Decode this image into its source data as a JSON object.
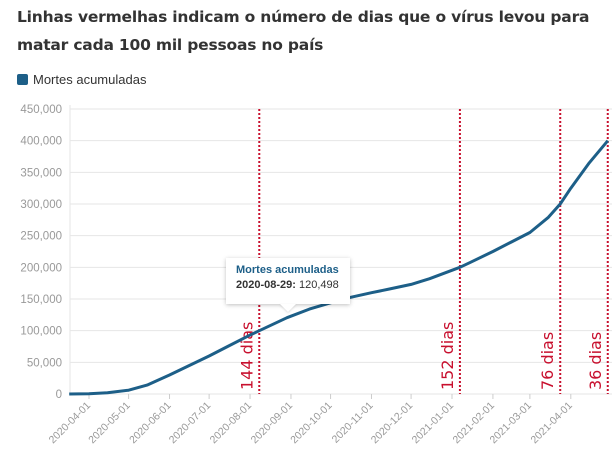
{
  "chart_data": {
    "type": "line",
    "title": "Linhas vermelhas indicam o número de dias que o vírus levou para matar cada 100 mil pessoas no país",
    "xlabel": "",
    "ylabel": "",
    "ylim": [
      0,
      450000
    ],
    "y_ticks": [
      0,
      50000,
      100000,
      150000,
      200000,
      250000,
      300000,
      350000,
      400000,
      450000
    ],
    "y_tick_labels": [
      "0",
      "50,000",
      "100,000",
      "150,000",
      "200,000",
      "250,000",
      "300,000",
      "350,000",
      "400,000",
      "450,000"
    ],
    "x_tick_labels": [
      "2020-04-01",
      "2020-05-01",
      "2020-06-01",
      "2020-07-01",
      "2020-08-01",
      "2020-09-01",
      "2020-10-01",
      "2020-11-01",
      "2020-12-01",
      "2021-01-01",
      "2021-02-01",
      "2021-03-01",
      "2021-04-01"
    ],
    "grid": true,
    "legend_placement": "top-left",
    "series": [
      {
        "name": "Mortes acumuladas",
        "color": "#1d5f88",
        "points": [
          [
            "2020-03-17",
            1
          ],
          [
            "2020-04-01",
            240
          ],
          [
            "2020-04-15",
            1900
          ],
          [
            "2020-05-01",
            6000
          ],
          [
            "2020-05-15",
            14000
          ],
          [
            "2020-06-01",
            30000
          ],
          [
            "2020-06-15",
            44000
          ],
          [
            "2020-07-01",
            60000
          ],
          [
            "2020-07-15",
            75000
          ],
          [
            "2020-08-01",
            93000
          ],
          [
            "2020-08-08",
            100000
          ],
          [
            "2020-08-29",
            120498
          ],
          [
            "2020-09-15",
            134000
          ],
          [
            "2020-10-01",
            144000
          ],
          [
            "2020-10-15",
            152000
          ],
          [
            "2020-11-01",
            160000
          ],
          [
            "2020-11-15",
            166000
          ],
          [
            "2020-12-01",
            173000
          ],
          [
            "2020-12-15",
            182000
          ],
          [
            "2021-01-07",
            200000
          ],
          [
            "2021-01-15",
            208000
          ],
          [
            "2021-02-01",
            225000
          ],
          [
            "2021-02-15",
            240000
          ],
          [
            "2021-03-01",
            255000
          ],
          [
            "2021-03-15",
            279000
          ],
          [
            "2021-03-24",
            300000
          ],
          [
            "2021-04-01",
            325000
          ],
          [
            "2021-04-15",
            365000
          ],
          [
            "2021-04-29",
            400000
          ]
        ]
      }
    ],
    "annotations": [
      {
        "date": "2020-08-08",
        "label": "144 dias"
      },
      {
        "date": "2021-01-07",
        "label": "152 dias"
      },
      {
        "date": "2021-03-24",
        "label": "76 dias"
      },
      {
        "date": "2021-04-29",
        "label": "36 dias"
      }
    ],
    "annotation_color": "#c8102e",
    "tooltip": {
      "title": "Mortes acumuladas",
      "date": "2020-08-29:",
      "value": "120,498"
    }
  }
}
